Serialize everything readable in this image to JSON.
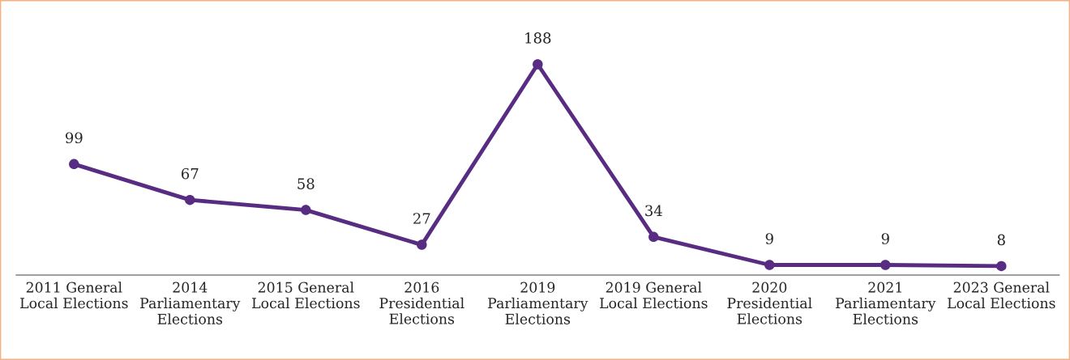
{
  "chart_data": {
    "type": "line",
    "categories": [
      "2011 General\nLocal Elections",
      "2014\nParliamentary\nElections",
      "2015 General\nLocal Elections",
      "2016\nPresidential\nElections",
      "2019\nParliamentary\nElections",
      "2019 General\nLocal Elections",
      "2020\nPresidential\nElections",
      "2021\nParliamentary\nElections",
      "2023 General\nLocal Elections"
    ],
    "series": [
      {
        "color": "#582c83",
        "values": [
          99,
          67,
          58,
          27,
          188,
          34,
          9,
          9,
          8
        ]
      }
    ],
    "data_labels": true,
    "marker": "circle",
    "line_style": "solid"
  }
}
